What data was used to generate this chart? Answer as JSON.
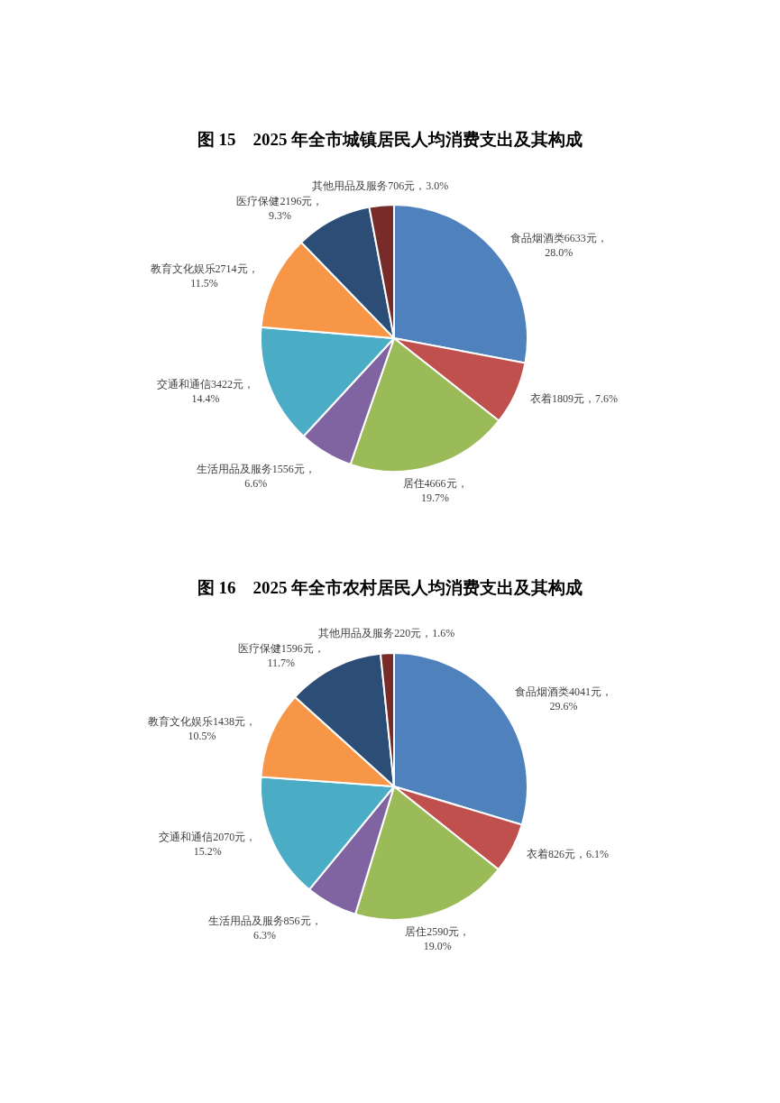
{
  "chart_data": [
    {
      "type": "pie",
      "title": "图 15　2025 年全市城镇居民人均消费支出及其构成",
      "categories": [
        "食品烟酒类",
        "衣着",
        "居住",
        "生活用品及服务",
        "交通和通信",
        "教育文化娱乐",
        "医疗保健",
        "其他用品及服务"
      ],
      "values": [
        6633,
        1809,
        4666,
        1556,
        3422,
        2714,
        2196,
        706
      ],
      "colors": [
        "#4f81bd",
        "#c0504d",
        "#9bbb59",
        "#8064a2",
        "#4bacc6",
        "#f79646",
        "#2c4d75",
        "#772c2a"
      ],
      "value_labels": [
        "6633元，28.0%",
        "1809元，7.6%",
        "4666元，19.7%",
        "1556元，6.6%",
        "3422元，14.4%",
        "2714元，11.5%",
        "2196元，9.3%",
        "706元，3.0%"
      ]
    },
    {
      "type": "pie",
      "title": "图 16　2025 年全市农村居民人均消费支出及其构成",
      "categories": [
        "食品烟酒类",
        "衣着",
        "居住",
        "生活用品及服务",
        "交通和通信",
        "教育文化娱乐",
        "医疗保健",
        "其他用品及服务"
      ],
      "values": [
        4041,
        826,
        2590,
        856,
        2070,
        1438,
        1596,
        220
      ],
      "colors": [
        "#4f81bd",
        "#c0504d",
        "#9bbb59",
        "#8064a2",
        "#4bacc6",
        "#f79646",
        "#2c4d75",
        "#772c2a"
      ],
      "value_labels": [
        "4041元，29.6%",
        "826元，6.1%",
        "2590元，19.0%",
        "856元，6.3%",
        "2070元，15.2%",
        "1438元，10.5%",
        "1596元，11.7%",
        "220元，1.6%"
      ]
    }
  ]
}
